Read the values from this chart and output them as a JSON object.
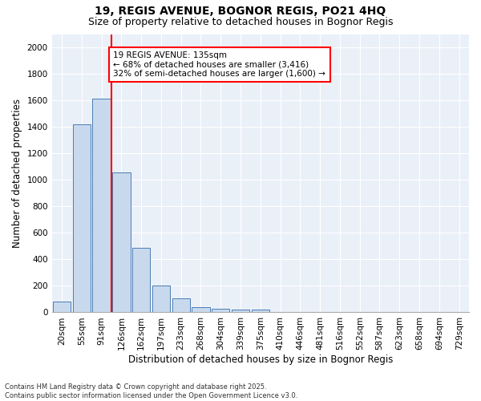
{
  "title_line1": "19, REGIS AVENUE, BOGNOR REGIS, PO21 4HQ",
  "title_line2": "Size of property relative to detached houses in Bognor Regis",
  "xlabel": "Distribution of detached houses by size in Bognor Regis",
  "ylabel": "Number of detached properties",
  "bar_labels": [
    "20sqm",
    "55sqm",
    "91sqm",
    "126sqm",
    "162sqm",
    "197sqm",
    "233sqm",
    "268sqm",
    "304sqm",
    "339sqm",
    "375sqm",
    "410sqm",
    "446sqm",
    "481sqm",
    "516sqm",
    "552sqm",
    "587sqm",
    "623sqm",
    "658sqm",
    "694sqm",
    "729sqm"
  ],
  "bar_values": [
    80,
    1420,
    1610,
    1055,
    490,
    205,
    103,
    38,
    28,
    18,
    18,
    0,
    0,
    0,
    0,
    0,
    0,
    0,
    0,
    0,
    0
  ],
  "bar_color": "#c8d9ed",
  "bar_edge_color": "#4a7db5",
  "vline_color": "red",
  "annotation_text": "19 REGIS AVENUE: 135sqm\n← 68% of detached houses are smaller (3,416)\n32% of semi-detached houses are larger (1,600) →",
  "annotation_box_color": "white",
  "annotation_box_edge": "red",
  "ylim": [
    0,
    2100
  ],
  "yticks": [
    0,
    200,
    400,
    600,
    800,
    1000,
    1200,
    1400,
    1600,
    1800,
    2000
  ],
  "bg_color": "#eaf0f8",
  "footer_text": "Contains HM Land Registry data © Crown copyright and database right 2025.\nContains public sector information licensed under the Open Government Licence v3.0.",
  "title_fontsize": 10,
  "subtitle_fontsize": 9,
  "axis_label_fontsize": 8.5,
  "tick_fontsize": 7.5,
  "annotation_fontsize": 7.5
}
